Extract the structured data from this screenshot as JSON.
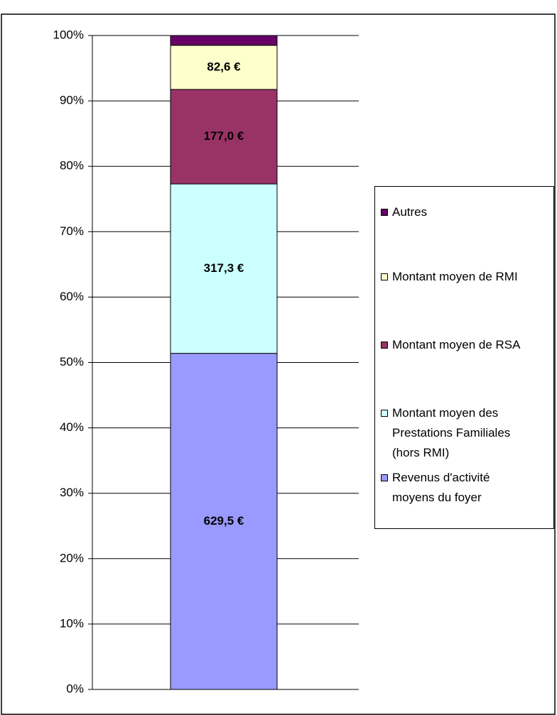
{
  "chart_data": {
    "type": "stacked_bar_100",
    "categories": [
      null
    ],
    "series": [
      {
        "name": "Revenus d'activité moyens du foyer",
        "color": "#9999ff",
        "values": [
          629.5
        ],
        "value_labels": [
          "629,5 €"
        ]
      },
      {
        "name": "Montant moyen des Prestations Familiales (hors RMI)",
        "color": "#ccffff",
        "values": [
          317.3
        ],
        "value_labels": [
          "317,3 €"
        ]
      },
      {
        "name": "Montant moyen de RSA",
        "color": "#993366",
        "values": [
          177.0
        ],
        "value_labels": [
          "177,0 €"
        ]
      },
      {
        "name": "Montant moyen de RMI",
        "color": "#ffffcc",
        "values": [
          82.6
        ],
        "value_labels": [
          "82,6 €"
        ]
      },
      {
        "name": "Autres",
        "color": "#660066",
        "values": [
          18.4
        ]
      }
    ],
    "ylim": [
      0,
      100
    ],
    "yticks": [
      {
        "value": 0,
        "label": "0%"
      },
      {
        "value": 10,
        "label": "10%"
      },
      {
        "value": 20,
        "label": "20%"
      },
      {
        "value": 30,
        "label": "30%"
      },
      {
        "value": 40,
        "label": "40%"
      },
      {
        "value": 50,
        "label": "50%"
      },
      {
        "value": 60,
        "label": "60%"
      },
      {
        "value": 70,
        "label": "70%"
      },
      {
        "value": 80,
        "label": "80%"
      },
      {
        "value": 90,
        "label": "90%"
      },
      {
        "value": 100,
        "label": "100%"
      }
    ],
    "grid": true,
    "legend": "right"
  }
}
